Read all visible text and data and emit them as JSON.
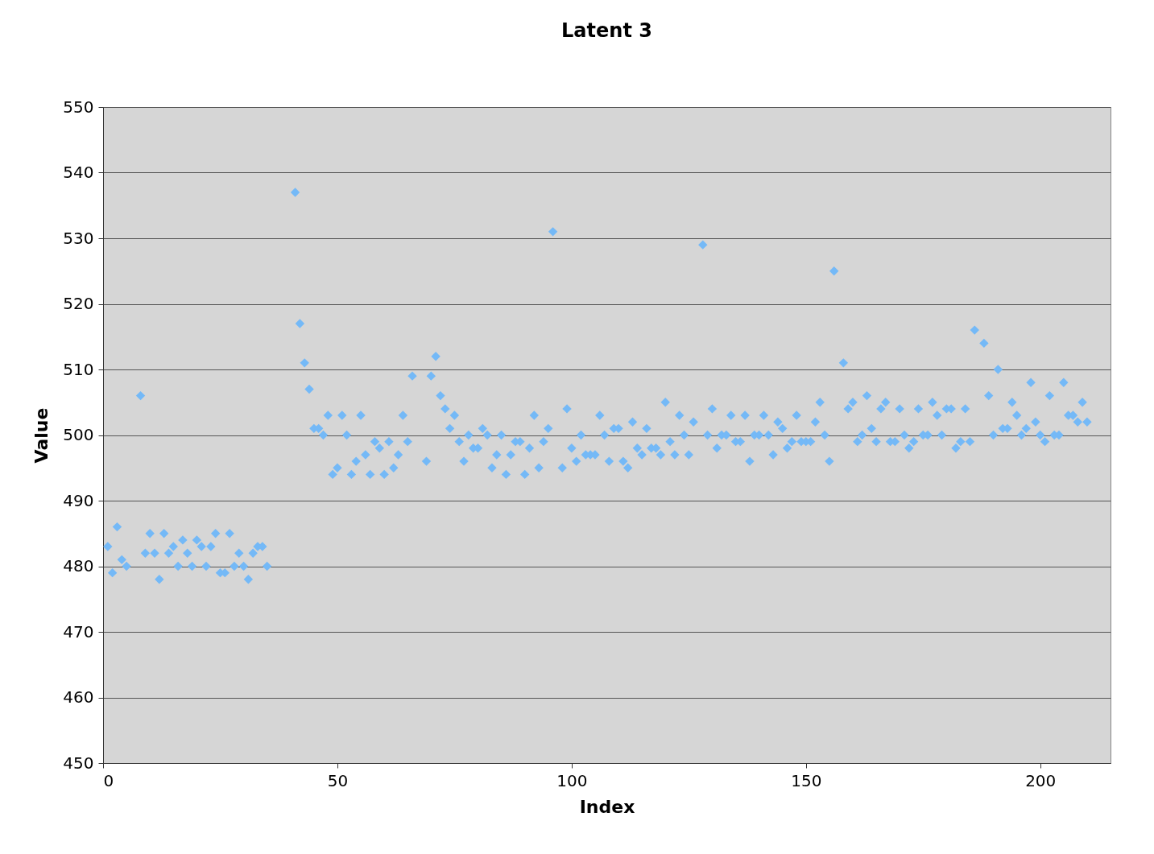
{
  "chart_data": {
    "type": "scatter",
    "title": "Latent 3",
    "xlabel": "Index",
    "ylabel": "Value",
    "x": [
      1,
      2,
      3,
      4,
      5,
      8,
      9,
      10,
      11,
      12,
      13,
      14,
      15,
      16,
      17,
      18,
      19,
      20,
      21,
      22,
      23,
      24,
      25,
      26,
      27,
      28,
      29,
      30,
      31,
      32,
      33,
      34,
      35,
      41,
      42,
      43,
      44,
      45,
      46,
      47,
      48,
      49,
      50,
      51,
      52,
      53,
      54,
      55,
      56,
      57,
      58,
      59,
      60,
      61,
      62,
      63,
      64,
      65,
      66,
      69,
      70,
      71,
      72,
      73,
      74,
      75,
      76,
      77,
      78,
      79,
      80,
      81,
      82,
      83,
      84,
      85,
      86,
      87,
      88,
      89,
      90,
      91,
      92,
      93,
      94,
      95,
      96,
      98,
      99,
      100,
      101,
      102,
      103,
      104,
      105,
      106,
      107,
      108,
      109,
      110,
      111,
      112,
      113,
      114,
      115,
      116,
      117,
      118,
      119,
      120,
      121,
      122,
      123,
      124,
      125,
      126,
      128,
      129,
      130,
      131,
      132,
      133,
      134,
      135,
      136,
      137,
      138,
      139,
      140,
      141,
      142,
      143,
      144,
      145,
      146,
      147,
      148,
      149,
      150,
      151,
      152,
      153,
      154,
      155,
      156,
      158,
      159,
      160,
      161,
      162,
      163,
      164,
      165,
      166,
      167,
      168,
      169,
      170,
      171,
      172,
      173,
      174,
      175,
      176,
      177,
      178,
      179,
      180,
      181,
      182,
      183,
      184,
      185,
      186,
      188,
      189,
      190,
      191,
      192,
      193,
      194,
      195,
      196,
      197,
      198,
      199,
      200,
      201,
      202,
      203,
      204,
      205,
      206,
      207,
      208,
      209,
      210
    ],
    "series": [
      {
        "color": "#74b9f7",
        "values": [
          483,
          479,
          486,
          481,
          480,
          506,
          482,
          485,
          482,
          478,
          485,
          482,
          483,
          480,
          484,
          482,
          480,
          484,
          483,
          480,
          483,
          485,
          479,
          479,
          485,
          480,
          482,
          480,
          478,
          482,
          483,
          483,
          480,
          537,
          517,
          511,
          507,
          501,
          501,
          500,
          503,
          494,
          495,
          503,
          500,
          494,
          496,
          503,
          497,
          494,
          499,
          498,
          494,
          499,
          495,
          497,
          503,
          499,
          509,
          496,
          509,
          512,
          506,
          504,
          501,
          503,
          499,
          496,
          500,
          498,
          498,
          501,
          500,
          495,
          497,
          500,
          494,
          497,
          499,
          499,
          494,
          498,
          503,
          495,
          499,
          501,
          531,
          495,
          504,
          498,
          496,
          500,
          497,
          497,
          497,
          503,
          500,
          496,
          501,
          501,
          496,
          495,
          502,
          498,
          497,
          501,
          498,
          498,
          497,
          505,
          499,
          497,
          503,
          500,
          497,
          502,
          529,
          500,
          504,
          498,
          500,
          500,
          503,
          499,
          499,
          503,
          496,
          500,
          500,
          503,
          500,
          497,
          502,
          501,
          498,
          499,
          503,
          499,
          499,
          499,
          502,
          505,
          500,
          496,
          525,
          511,
          504,
          505,
          499,
          500,
          506,
          501,
          499,
          504,
          505,
          499,
          499,
          504,
          500,
          498,
          499,
          504,
          500,
          500,
          505,
          503,
          500,
          504,
          504,
          498,
          499,
          504,
          499,
          516,
          514,
          506,
          500,
          510,
          501,
          501,
          505,
          503,
          500,
          501,
          508,
          502,
          500,
          499,
          506,
          500,
          500,
          508,
          503,
          503,
          502,
          505,
          502
        ]
      }
    ],
    "xlim": [
      0,
      215
    ],
    "xticks": [
      0,
      50,
      100,
      150,
      200
    ],
    "ylim": [
      450,
      550
    ],
    "yticks": [
      450,
      460,
      470,
      480,
      490,
      500,
      510,
      520,
      530,
      540,
      550
    ],
    "grid": "y",
    "marker": "diamond"
  }
}
